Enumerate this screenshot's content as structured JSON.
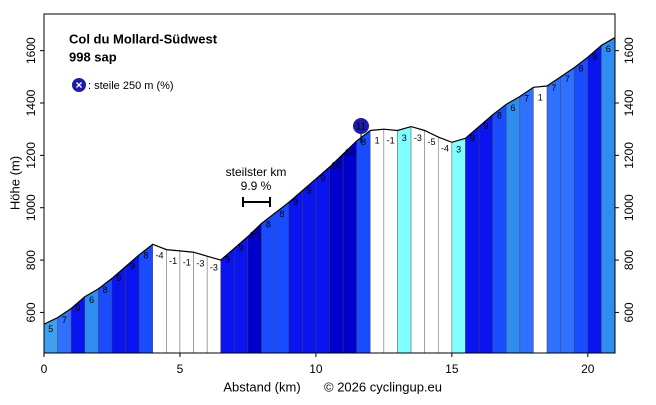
{
  "chart_data": {
    "type": "area",
    "title": "Col du Mollard-Südwest",
    "subtitle": "998 sap",
    "legend_text": ": steile 250 m (%)",
    "steep_marker_label": "11",
    "steepest_km_title": "steilster km",
    "steepest_km_label": "9.9 %",
    "x_label": "Abstand (km)",
    "y_label": "Höhe (m)",
    "credit": "© 2026 cyclingup.eu",
    "x": [
      0,
      0.5,
      1,
      1.5,
      2,
      2.5,
      3,
      3.5,
      4,
      4.5,
      5,
      5.5,
      6,
      6.5,
      7,
      7.5,
      8,
      8.5,
      9,
      9.5,
      10,
      10.5,
      11,
      11.5,
      12,
      12.5,
      13,
      13.5,
      14,
      14.5,
      15,
      15.5,
      16,
      16.5,
      17,
      17.5,
      18,
      18.5,
      19,
      19.5,
      20,
      20.5,
      21
    ],
    "elevation": [
      555,
      580,
      615,
      660,
      690,
      730,
      775,
      820,
      860,
      840,
      835,
      830,
      815,
      800,
      845,
      890,
      940,
      980,
      1020,
      1065,
      1110,
      1155,
      1205,
      1255,
      1295,
      1300,
      1295,
      1310,
      1295,
      1270,
      1250,
      1265,
      1310,
      1355,
      1395,
      1425,
      1460,
      1465,
      1500,
      1535,
      1575,
      1620,
      1650
    ],
    "gradients": [
      5,
      7,
      9,
      6,
      8,
      9,
      9,
      8,
      -4,
      -1,
      -1,
      -3,
      -3,
      9,
      9,
      10,
      8,
      8,
      9,
      9,
      9,
      10,
      10,
      8,
      1,
      -1,
      3,
      -3,
      -5,
      -4,
      3,
      9,
      9,
      8,
      6,
      7,
      1,
      7,
      7,
      8,
      9,
      6
    ],
    "colors": [
      "#40a0f0",
      "#3070ff",
      "#0a14ee",
      "#2f8cf0",
      "#1a4cff",
      "#0a14ee",
      "#0a14ee",
      "#1a4cff",
      "#ffffff",
      "#ffffff",
      "#ffffff",
      "#ffffff",
      "#ffffff",
      "#0a14ee",
      "#0a14ee",
      "#0000cc",
      "#1a4cff",
      "#1a4cff",
      "#0a14ee",
      "#0a14ee",
      "#0a14ee",
      "#0000cc",
      "#0000cc",
      "#1a4cff",
      "#ffffff",
      "#ffffff",
      "#80ffff",
      "#ffffff",
      "#ffffff",
      "#ffffff",
      "#80ffff",
      "#0a14ee",
      "#0a14ee",
      "#1a4cff",
      "#2f8cf0",
      "#3070ff",
      "#ffffff",
      "#3070ff",
      "#3070ff",
      "#1a4cff",
      "#0a14ee",
      "#2f8cf0"
    ],
    "xlim": [
      0,
      21
    ],
    "ylim": [
      445,
      1740
    ],
    "xticks": [
      0,
      5,
      10,
      15,
      20
    ],
    "yticks": [
      600,
      800,
      1000,
      1200,
      1400,
      1600
    ]
  }
}
